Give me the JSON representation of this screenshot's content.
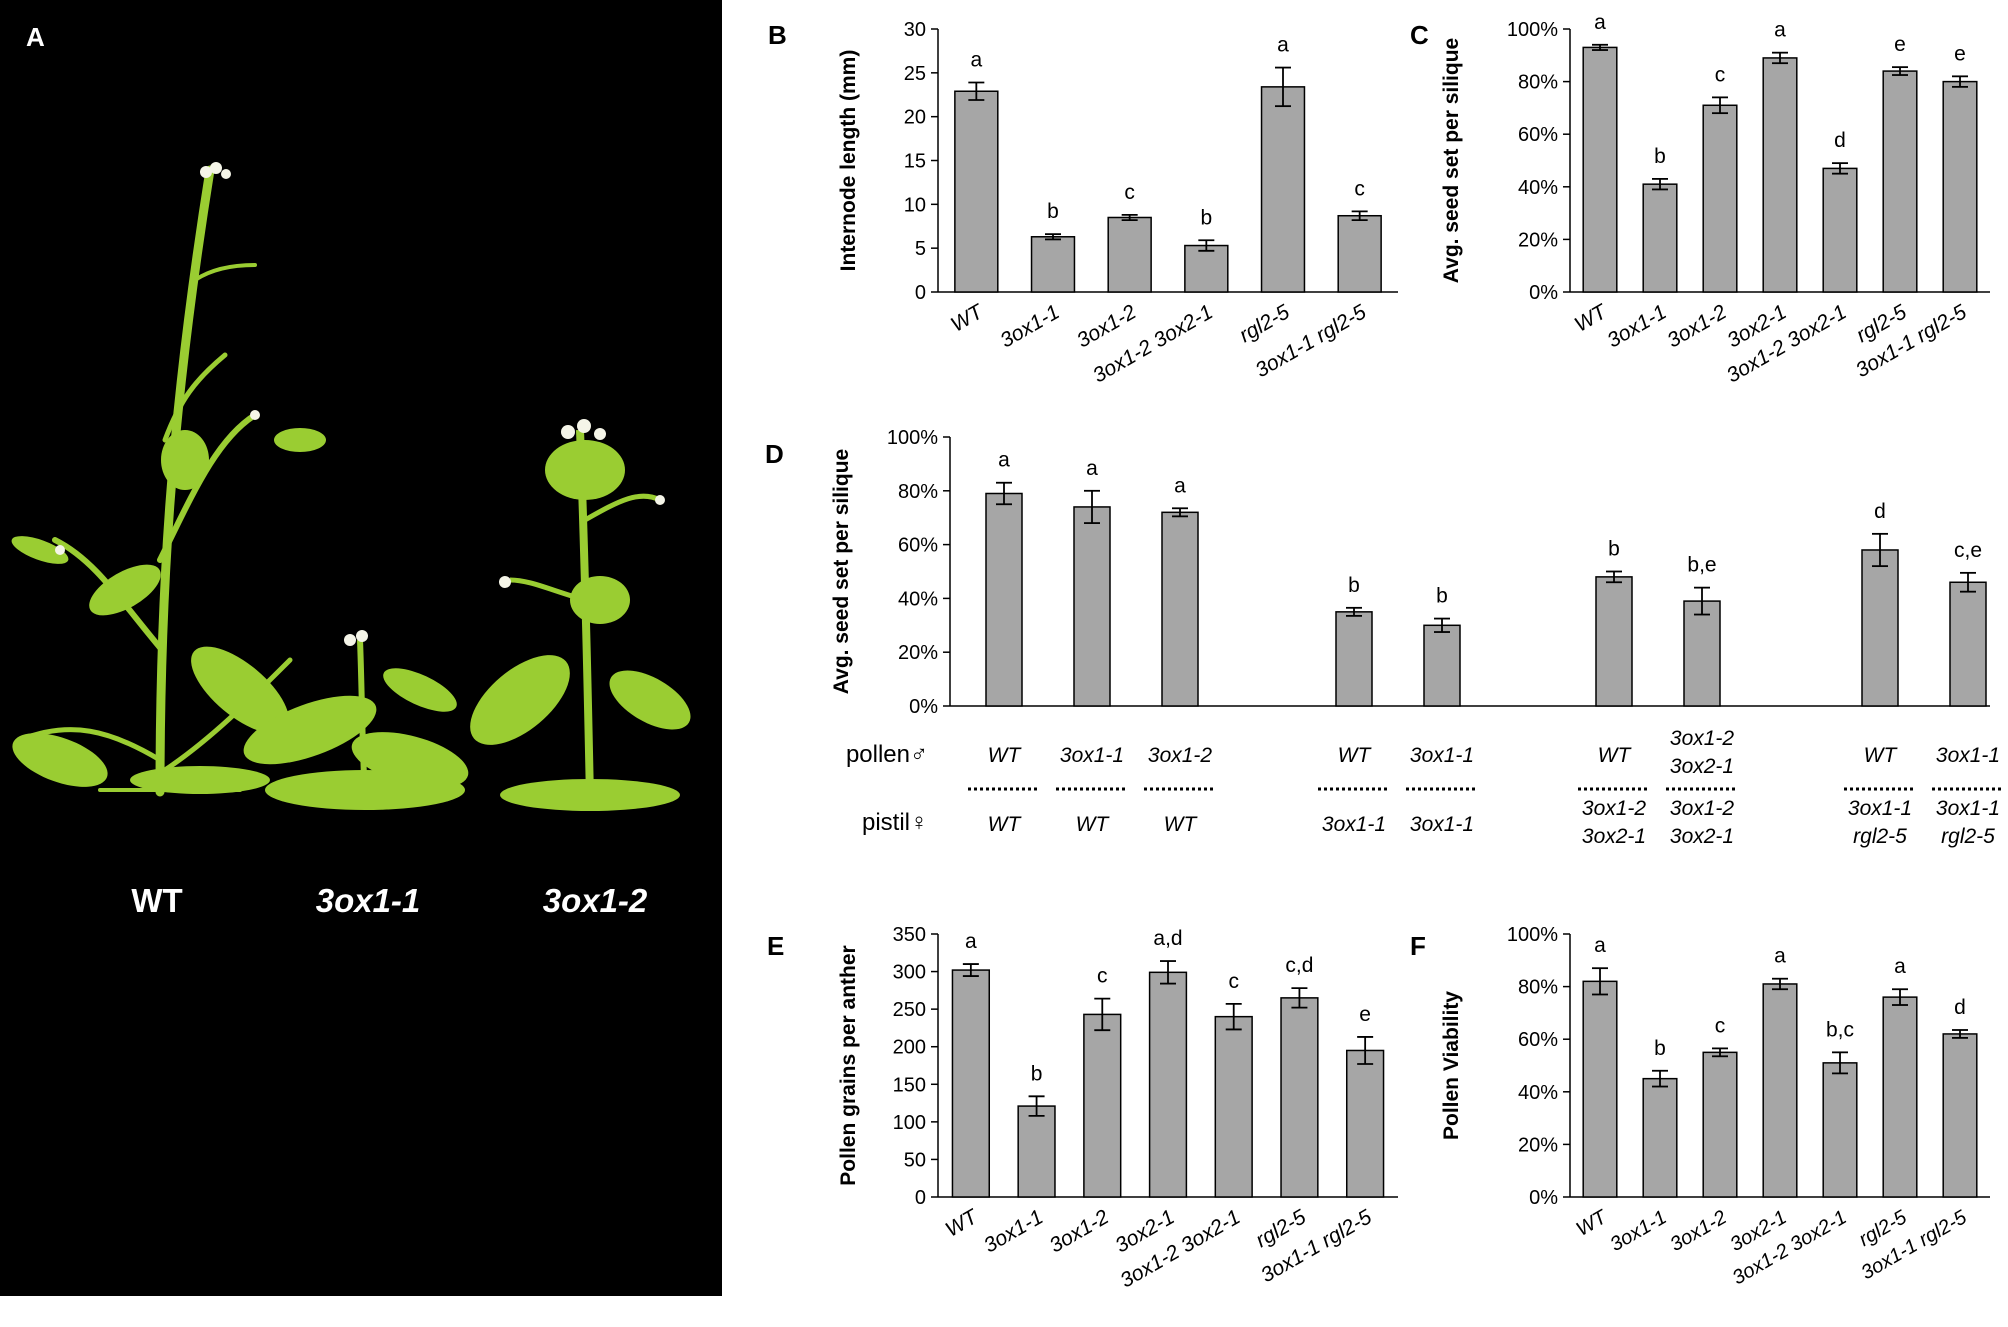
{
  "panel_a": {
    "letter": "A",
    "background": "#000000",
    "plant_color": "#9acd32",
    "labels": [
      "WT",
      "3ox1-1",
      "3ox1-2"
    ]
  },
  "bar_color": "#a6a6a6",
  "chart_data": [
    {
      "id": "B",
      "letter": "B",
      "type": "bar",
      "ylabel": "Internode length (mm)",
      "ylim": [
        0,
        30
      ],
      "yticks": [
        "0",
        "5",
        "10",
        "15",
        "20",
        "25",
        "30"
      ],
      "categories": [
        "WT",
        "3ox1-1",
        "3ox1-2",
        "3ox1-2 3ox2-1",
        "rgl2-5",
        "3ox1-1 rgl2-5"
      ],
      "values": [
        22.9,
        6.3,
        8.5,
        5.3,
        23.4,
        8.7
      ],
      "errors": [
        1.0,
        0.3,
        0.3,
        0.6,
        2.2,
        0.5
      ],
      "letters": [
        "a",
        "b",
        "c",
        "b",
        "a",
        "c"
      ]
    },
    {
      "id": "C",
      "letter": "C",
      "type": "bar",
      "ylabel": "Avg. seed set per silique",
      "ylim": [
        0,
        100
      ],
      "yticks": [
        "0%",
        "20%",
        "40%",
        "60%",
        "80%",
        "100%"
      ],
      "categories": [
        "WT",
        "3ox1-1",
        "3ox1-2",
        "3ox2-1",
        "3ox1-2 3ox2-1",
        "rgl2-5",
        "3ox1-1 rgl2-5"
      ],
      "values": [
        93,
        41,
        71,
        89,
        47,
        84,
        80
      ],
      "errors": [
        1,
        2,
        3,
        2,
        2,
        1.5,
        2
      ],
      "letters": [
        "a",
        "b",
        "c",
        "a",
        "d",
        "e",
        "e"
      ]
    },
    {
      "id": "D",
      "letter": "D",
      "type": "bar",
      "ylabel": "Avg. seed set per silique",
      "ylim": [
        0,
        100
      ],
      "yticks": [
        "0%",
        "20%",
        "40%",
        "60%",
        "80%",
        "100%"
      ],
      "values": [
        79,
        74,
        72,
        35,
        30,
        48,
        39,
        58,
        46
      ],
      "errors": [
        4,
        6,
        1.5,
        1.5,
        2.5,
        2,
        5,
        6,
        3.5
      ],
      "letters": [
        "a",
        "a",
        "a",
        "b",
        "b",
        "b",
        "b,e",
        "d",
        "c,e"
      ],
      "row_labels": [
        "pollen♂",
        "pistil♀"
      ],
      "pollen": [
        [
          "WT"
        ],
        [
          "3ox1-1"
        ],
        [
          "3ox1-2"
        ],
        [
          "WT"
        ],
        [
          "3ox1-1"
        ],
        [
          "WT"
        ],
        [
          "3ox1-2",
          "3ox2-1"
        ],
        [
          "WT"
        ],
        [
          "3ox1-1"
        ]
      ],
      "pistil": [
        [
          "WT"
        ],
        [
          "WT"
        ],
        [
          "WT"
        ],
        [
          "3ox1-1"
        ],
        [
          "3ox1-1"
        ],
        [
          "3ox1-2",
          "3ox2-1"
        ],
        [
          "3ox1-2",
          "3ox2-1"
        ],
        [
          "3ox1-1",
          "rgl2-5"
        ],
        [
          "3ox1-1",
          "rgl2-5"
        ]
      ]
    },
    {
      "id": "E",
      "letter": "E",
      "type": "bar",
      "ylabel": "Pollen grains per anther",
      "ylim": [
        0,
        350
      ],
      "yticks": [
        "0",
        "50",
        "100",
        "150",
        "200",
        "250",
        "300",
        "350"
      ],
      "categories": [
        "WT",
        "3ox1-1",
        "3ox1-2",
        "3ox2-1",
        "3ox1-2 3ox2-1",
        "rgl2-5",
        "3ox1-1 rgl2-5"
      ],
      "values": [
        302,
        121,
        243,
        299,
        240,
        265,
        195
      ],
      "errors": [
        8,
        13,
        21,
        15,
        17,
        13,
        18
      ],
      "letters": [
        "a",
        "b",
        "c",
        "a,d",
        "c",
        "c,d",
        "e"
      ]
    },
    {
      "id": "F",
      "letter": "F",
      "type": "bar",
      "ylabel": "Pollen Viability",
      "ylim": [
        0,
        100
      ],
      "yticks": [
        "0%",
        "20%",
        "40%",
        "60%",
        "80%",
        "100%"
      ],
      "categories": [
        "WT",
        "3ox1-1",
        "3ox1-2",
        "3ox2-1",
        "3ox1-2 3ox2-1",
        "rgl2-5",
        "3ox1-1 rgl2-5"
      ],
      "values": [
        82,
        45,
        55,
        81,
        51,
        76,
        62
      ],
      "errors": [
        5,
        3,
        1.5,
        2,
        4,
        3,
        1.5
      ],
      "letters": [
        "a",
        "b",
        "c",
        "a",
        "b,c",
        "a",
        "d"
      ]
    }
  ]
}
